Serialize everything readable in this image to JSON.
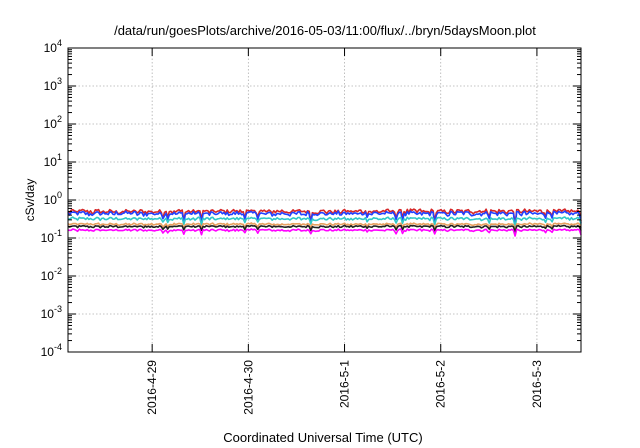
{
  "chart_data": {
    "type": "line",
    "title": "/data/run/goesPlots/archive/2016-05-03/11:00/flux/../bryn/5daysMoon.plot",
    "xlabel": "Coordinated Universal Time (UTC)",
    "ylabel": "cSv/day",
    "y_scale": "log",
    "ylim": [
      0.0001,
      10000
    ],
    "y_ticks": [
      {
        "value": 0.0001,
        "base": "10",
        "exp": "-4"
      },
      {
        "value": 0.001,
        "base": "10",
        "exp": "-3"
      },
      {
        "value": 0.01,
        "base": "10",
        "exp": "-2"
      },
      {
        "value": 0.1,
        "base": "10",
        "exp": "-1"
      },
      {
        "value": 1,
        "base": "10",
        "exp": "0"
      },
      {
        "value": 10,
        "base": "10",
        "exp": "1"
      },
      {
        "value": 100,
        "base": "10",
        "exp": "2"
      },
      {
        "value": 1000,
        "base": "10",
        "exp": "3"
      },
      {
        "value": 10000,
        "base": "10",
        "exp": "4"
      }
    ],
    "xlim": [
      "2016-04-28 03:00",
      "2016-05-03 11:00"
    ],
    "x_ticks": [
      "2016-4-29",
      "2016-4-30",
      "2016-5-1",
      "2016-5-2",
      "2016-5-3"
    ],
    "grid": true,
    "series": [
      {
        "color": "#d62728",
        "level": 0.5,
        "spread": 0.1
      },
      {
        "color": "#2040ff",
        "level": 0.44,
        "spread": 0.1
      },
      {
        "color": "#30c8c8",
        "level": 0.32,
        "spread": 0.07
      },
      {
        "color": "#e8a060",
        "level": 0.23,
        "spread": 0.05
      },
      {
        "color": "#202020",
        "level": 0.2,
        "spread": 0.05
      },
      {
        "color": "#ff00ff",
        "level": 0.16,
        "spread": 0.05
      }
    ]
  }
}
